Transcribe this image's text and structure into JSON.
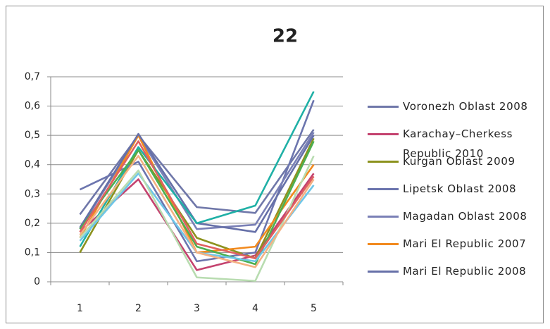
{
  "chart_data": {
    "type": "line",
    "title": "22",
    "categories": [
      1,
      2,
      3,
      4,
      5
    ],
    "ylim": [
      0,
      0.7
    ],
    "yticks": [
      0,
      {
        "value": 0.1,
        "label": "0,1"
      },
      {
        "value": 0.2,
        "label": "0,2"
      },
      {
        "value": 0.3,
        "label": "0,3"
      },
      {
        "value": 0.4,
        "label": "0,4"
      },
      {
        "value": 0.5,
        "label": "0,5"
      },
      {
        "value": 0.6,
        "label": "0,6"
      },
      {
        "value": 0.7,
        "label": "0,7"
      }
    ],
    "grid": true,
    "series": [
      {
        "name": "Voronezh Oblast 2008",
        "color": "#6f77a9",
        "values": [
          0.23,
          0.5,
          0.255,
          0.235,
          0.52
        ]
      },
      {
        "name": "Karachay–Cherkess Republic 2010",
        "color": "#c4436f",
        "values": [
          0.17,
          0.35,
          0.04,
          0.09,
          0.37
        ]
      },
      {
        "name": "Kurgan Oblast 2009",
        "color": "#8c921e",
        "values": [
          0.1,
          0.45,
          0.15,
          0.08,
          0.49
        ]
      },
      {
        "name": "Lipetsk Oblast 2008",
        "color": "#6c75ae",
        "values": [
          0.315,
          0.41,
          0.07,
          0.1,
          0.62
        ]
      },
      {
        "name": "Magadan Oblast 2008",
        "color": "#7a80b6",
        "values": [
          0.18,
          0.5,
          0.18,
          0.195,
          0.51
        ]
      },
      {
        "name": "Mari El Republic 2007",
        "color": "#f28a1e",
        "values": [
          0.15,
          0.5,
          0.1,
          0.12,
          0.4
        ]
      },
      {
        "name": "Mari El Republic 2008",
        "color": "#6670a8",
        "values": [
          0.185,
          0.505,
          0.2,
          0.17,
          0.5
        ]
      },
      {
        "color": "#1fb0a6",
        "values": [
          0.12,
          0.46,
          0.2,
          0.26,
          0.65
        ]
      },
      {
        "color": "#4caf50",
        "values": [
          0.18,
          0.45,
          0.12,
          0.06,
          0.48
        ]
      },
      {
        "color": "#6ec6e8",
        "values": [
          0.14,
          0.37,
          0.1,
          0.07,
          0.33
        ]
      },
      {
        "color": "#b8dcb0",
        "values": [
          0.15,
          0.38,
          0.015,
          0.003,
          0.43
        ]
      },
      {
        "color": "#f4b183",
        "values": [
          0.16,
          0.43,
          0.1,
          0.05,
          0.35
        ]
      },
      {
        "color": "#e06060",
        "values": [
          0.17,
          0.48,
          0.13,
          0.08,
          0.36
        ]
      }
    ]
  }
}
